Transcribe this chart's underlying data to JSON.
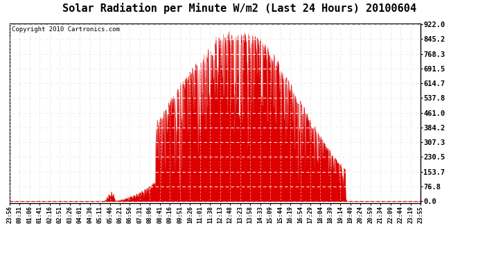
{
  "title": "Solar Radiation per Minute W/m2 (Last 24 Hours) 20100604",
  "copyright": "Copyright 2010 Cartronics.com",
  "yticks": [
    0.0,
    76.8,
    153.7,
    230.5,
    307.3,
    384.2,
    461.0,
    537.8,
    614.7,
    691.5,
    768.3,
    845.2,
    922.0
  ],
  "ymax": 922.0,
  "ymin": 0.0,
  "fill_color": "#dd0000",
  "line_color": "#dd0000",
  "bg_color": "#ffffff",
  "grid_color": "#bbbbbb",
  "title_fontsize": 11,
  "copyright_fontsize": 6.5,
  "tick_fontsize": 6,
  "ytick_fontsize": 7.5,
  "num_points": 1440,
  "x_tick_labels": [
    "23:56",
    "00:31",
    "01:06",
    "01:41",
    "02:16",
    "02:51",
    "03:26",
    "04:01",
    "04:36",
    "05:11",
    "05:46",
    "06:21",
    "06:56",
    "07:31",
    "08:06",
    "08:41",
    "09:16",
    "09:51",
    "10:26",
    "11:01",
    "11:38",
    "12:13",
    "12:48",
    "13:23",
    "13:58",
    "14:33",
    "15:09",
    "15:44",
    "16:19",
    "16:54",
    "17:29",
    "18:04",
    "18:39",
    "19:14",
    "19:49",
    "20:24",
    "20:59",
    "21:34",
    "22:09",
    "22:44",
    "23:19",
    "23:55"
  ]
}
